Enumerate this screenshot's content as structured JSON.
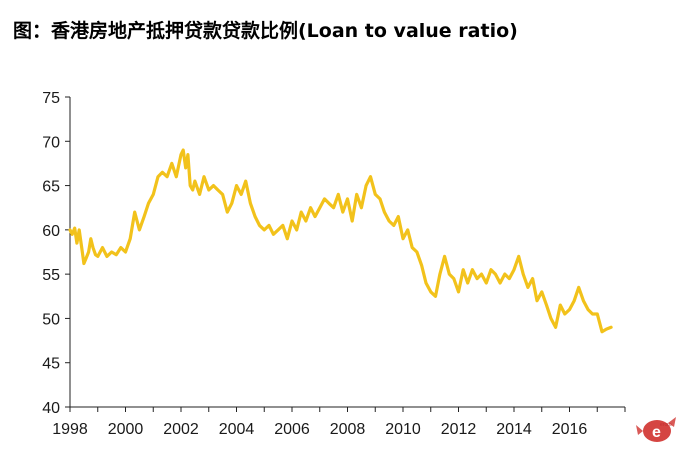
{
  "title": "图：香港房地产抵押贷款贷款比例(Loan to value ratio)",
  "watermark_text": "eroro",
  "colors": {
    "line": "#F2C21B",
    "axis": "#222222",
    "watermark": "#d0312d"
  },
  "chart_data": {
    "type": "line",
    "title": "图：香港房地产抵押贷款贷款比例(Loan to value ratio)",
    "xlabel": "",
    "ylabel": "",
    "xlim": [
      1998,
      2018
    ],
    "ylim": [
      40,
      75
    ],
    "xticks": [
      1998,
      2000,
      2002,
      2004,
      2006,
      2008,
      2010,
      2012,
      2014,
      2016
    ],
    "yticks": [
      40,
      45,
      50,
      55,
      60,
      65,
      70,
      75
    ],
    "grid": false,
    "legend": "none",
    "series": [
      {
        "x": [
          1998.0,
          1998.08,
          1998.17,
          1998.25,
          1998.33,
          1998.42,
          1998.5,
          1998.58,
          1998.67,
          1998.75,
          1998.83,
          1998.92,
          1999.0,
          1999.17,
          1999.33,
          1999.5,
          1999.67,
          1999.83,
          2000.0,
          2000.17,
          2000.33,
          2000.5,
          2000.67,
          2000.83,
          2001.0,
          2001.17,
          2001.33,
          2001.5,
          2001.67,
          2001.83,
          2002.0,
          2002.08,
          2002.17,
          2002.25,
          2002.33,
          2002.42,
          2002.5,
          2002.67,
          2002.83,
          2003.0,
          2003.17,
          2003.33,
          2003.5,
          2003.67,
          2003.83,
          2004.0,
          2004.17,
          2004.33,
          2004.5,
          2004.67,
          2004.83,
          2005.0,
          2005.17,
          2005.33,
          2005.5,
          2005.67,
          2005.83,
          2006.0,
          2006.17,
          2006.33,
          2006.5,
          2006.67,
          2006.83,
          2007.0,
          2007.17,
          2007.33,
          2007.5,
          2007.67,
          2007.83,
          2008.0,
          2008.17,
          2008.33,
          2008.5,
          2008.67,
          2008.83,
          2009.0,
          2009.17,
          2009.33,
          2009.5,
          2009.67,
          2009.83,
          2010.0,
          2010.17,
          2010.33,
          2010.5,
          2010.67,
          2010.83,
          2011.0,
          2011.17,
          2011.33,
          2011.5,
          2011.67,
          2011.83,
          2012.0,
          2012.17,
          2012.33,
          2012.5,
          2012.67,
          2012.83,
          2013.0,
          2013.17,
          2013.33,
          2013.5,
          2013.67,
          2013.83,
          2014.0,
          2014.17,
          2014.33,
          2014.5,
          2014.67,
          2014.83,
          2015.0,
          2015.17,
          2015.33,
          2015.5,
          2015.67,
          2015.83,
          2016.0,
          2016.17,
          2016.33,
          2016.5,
          2016.67,
          2016.83,
          2017.0,
          2017.17,
          2017.33,
          2017.5
        ],
        "values": [
          60.0,
          59.5,
          60.2,
          58.5,
          60.0,
          58.0,
          56.2,
          56.8,
          57.5,
          59.0,
          58.0,
          57.2,
          57.0,
          58.0,
          57.0,
          57.5,
          57.2,
          58.0,
          57.5,
          59.0,
          62.0,
          60.0,
          61.5,
          63.0,
          64.0,
          66.0,
          66.5,
          66.0,
          67.5,
          66.0,
          68.5,
          69.0,
          67.0,
          68.5,
          65.0,
          64.5,
          65.5,
          64.0,
          66.0,
          64.5,
          65.0,
          64.5,
          64.0,
          62.0,
          63.0,
          65.0,
          64.0,
          65.5,
          63.0,
          61.5,
          60.5,
          60.0,
          60.5,
          59.5,
          60.0,
          60.5,
          59.0,
          61.0,
          60.0,
          62.0,
          61.0,
          62.5,
          61.5,
          62.5,
          63.5,
          63.0,
          62.5,
          64.0,
          62.0,
          63.5,
          61.0,
          64.0,
          62.5,
          65.0,
          66.0,
          64.0,
          63.5,
          62.0,
          61.0,
          60.5,
          61.5,
          59.0,
          60.0,
          58.0,
          57.5,
          56.0,
          54.0,
          53.0,
          52.5,
          55.0,
          57.0,
          55.0,
          54.5,
          53.0,
          55.5,
          54.0,
          55.5,
          54.5,
          55.0,
          54.0,
          55.5,
          55.0,
          54.0,
          55.0,
          54.5,
          55.5,
          57.0,
          55.0,
          53.5,
          54.5,
          52.0,
          53.0,
          51.5,
          50.0,
          49.0,
          51.5,
          50.5,
          51.0,
          52.0,
          53.5,
          52.0,
          51.0,
          50.5,
          50.5,
          48.5,
          48.8,
          49.0
        ]
      }
    ]
  }
}
